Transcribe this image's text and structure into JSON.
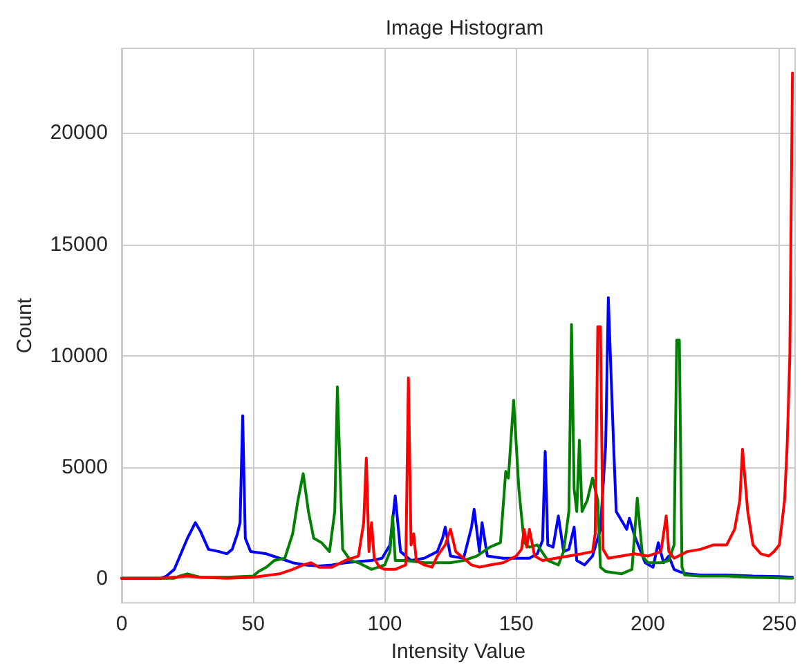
{
  "chart_data": {
    "type": "line",
    "title": "Image Histogram",
    "xlabel": "Intensity Value",
    "ylabel": "Count",
    "xlim": [
      0,
      256
    ],
    "xticks": [
      0,
      50,
      100,
      150,
      200,
      250
    ],
    "ylim": [
      -1100,
      23800
    ],
    "yticks": [
      0,
      5000,
      10000,
      15000,
      20000
    ],
    "grid": true,
    "marker": "none",
    "line_style": "solid",
    "series": [
      {
        "color": "#0000ff",
        "x": [
          0,
          15,
          17,
          20,
          25,
          28,
          30,
          33,
          37,
          40,
          42,
          44,
          45,
          46,
          47,
          49,
          55,
          60,
          65,
          70,
          75,
          80,
          85,
          90,
          95,
          99,
          100,
          102,
          104,
          106,
          110,
          115,
          120,
          122,
          123,
          125,
          130,
          133,
          134,
          136,
          137,
          139,
          145,
          150,
          155,
          158,
          160,
          161,
          162,
          164,
          166,
          168,
          170,
          172,
          173,
          176,
          179,
          182,
          184,
          185,
          187,
          188,
          190,
          192,
          193,
          195,
          197,
          199,
          202,
          204,
          206,
          208,
          210,
          212,
          215,
          220,
          230,
          240,
          250,
          255
        ],
        "values": [
          0,
          0,
          100,
          400,
          1800,
          2500,
          2100,
          1300,
          1200,
          1100,
          1300,
          2000,
          2500,
          7300,
          1800,
          1200,
          1100,
          900,
          700,
          600,
          550,
          600,
          700,
          750,
          800,
          900,
          1100,
          1500,
          3700,
          1200,
          800,
          900,
          1200,
          1800,
          2300,
          1000,
          900,
          2300,
          3100,
          1200,
          2500,
          1000,
          900,
          900,
          900,
          1100,
          1700,
          5700,
          1500,
          1400,
          2800,
          1200,
          1300,
          2300,
          800,
          600,
          1000,
          2200,
          6000,
          12600,
          6000,
          3000,
          2600,
          2200,
          2700,
          1900,
          1300,
          700,
          500,
          1600,
          700,
          1000,
          400,
          300,
          200,
          150,
          150,
          100,
          80,
          50
        ]
      },
      {
        "color": "#008000",
        "x": [
          0,
          20,
          22,
          25,
          28,
          30,
          40,
          50,
          52,
          55,
          58,
          62,
          65,
          67,
          69,
          71,
          73,
          76,
          79,
          81,
          82,
          84,
          87,
          90,
          95,
          100,
          102,
          103,
          104,
          108,
          115,
          120,
          125,
          130,
          135,
          140,
          144,
          146,
          147,
          149,
          151,
          153,
          155,
          158,
          162,
          166,
          168,
          170,
          171,
          172,
          173,
          174,
          175,
          177,
          179,
          181,
          182,
          184,
          190,
          194,
          196,
          198,
          200,
          205,
          208,
          210,
          211,
          212,
          213,
          214,
          220,
          230,
          240,
          255
        ],
        "values": [
          0,
          0,
          100,
          200,
          100,
          50,
          50,
          100,
          300,
          500,
          800,
          900,
          2000,
          3500,
          4700,
          3000,
          1800,
          1600,
          1200,
          3000,
          8600,
          1300,
          800,
          700,
          400,
          600,
          1200,
          2800,
          800,
          800,
          700,
          700,
          700,
          800,
          1000,
          1400,
          1600,
          4800,
          4500,
          8000,
          4000,
          1600,
          1400,
          1500,
          800,
          600,
          1200,
          3000,
          11400,
          4000,
          3000,
          6200,
          3000,
          3500,
          4500,
          3500,
          500,
          300,
          200,
          400,
          3600,
          1000,
          700,
          700,
          800,
          1500,
          10700,
          10700,
          500,
          150,
          100,
          100,
          50,
          0
        ]
      },
      {
        "color": "#ff0000",
        "x": [
          0,
          15,
          25,
          30,
          40,
          50,
          60,
          65,
          69,
          72,
          75,
          80,
          85,
          90,
          92,
          93,
          94,
          95,
          96,
          98,
          100,
          104,
          108,
          109,
          110,
          111,
          112,
          115,
          118,
          120,
          123,
          125,
          127,
          130,
          133,
          136,
          140,
          145,
          150,
          152,
          153,
          154,
          155,
          157,
          160,
          165,
          170,
          175,
          179,
          180,
          181,
          182,
          183,
          185,
          190,
          195,
          200,
          205,
          207,
          208,
          210,
          215,
          220,
          225,
          230,
          233,
          235,
          236,
          238,
          240,
          243,
          246,
          248,
          250,
          252,
          253,
          254,
          255
        ],
        "values": [
          0,
          0,
          100,
          50,
          0,
          50,
          200,
          400,
          600,
          700,
          500,
          500,
          800,
          1000,
          2500,
          5400,
          1200,
          2500,
          900,
          500,
          400,
          400,
          600,
          9000,
          1500,
          2000,
          800,
          600,
          500,
          1000,
          1500,
          2200,
          1200,
          900,
          600,
          500,
          600,
          700,
          1000,
          1300,
          2200,
          1400,
          2200,
          1000,
          800,
          900,
          1000,
          1100,
          1200,
          2000,
          11300,
          11300,
          1300,
          900,
          1000,
          1100,
          1000,
          1200,
          2800,
          1200,
          900,
          1200,
          1300,
          1500,
          1500,
          2200,
          3500,
          5800,
          3000,
          1500,
          1100,
          1000,
          1200,
          1500,
          3500,
          6000,
          10000,
          22700
        ]
      }
    ]
  }
}
